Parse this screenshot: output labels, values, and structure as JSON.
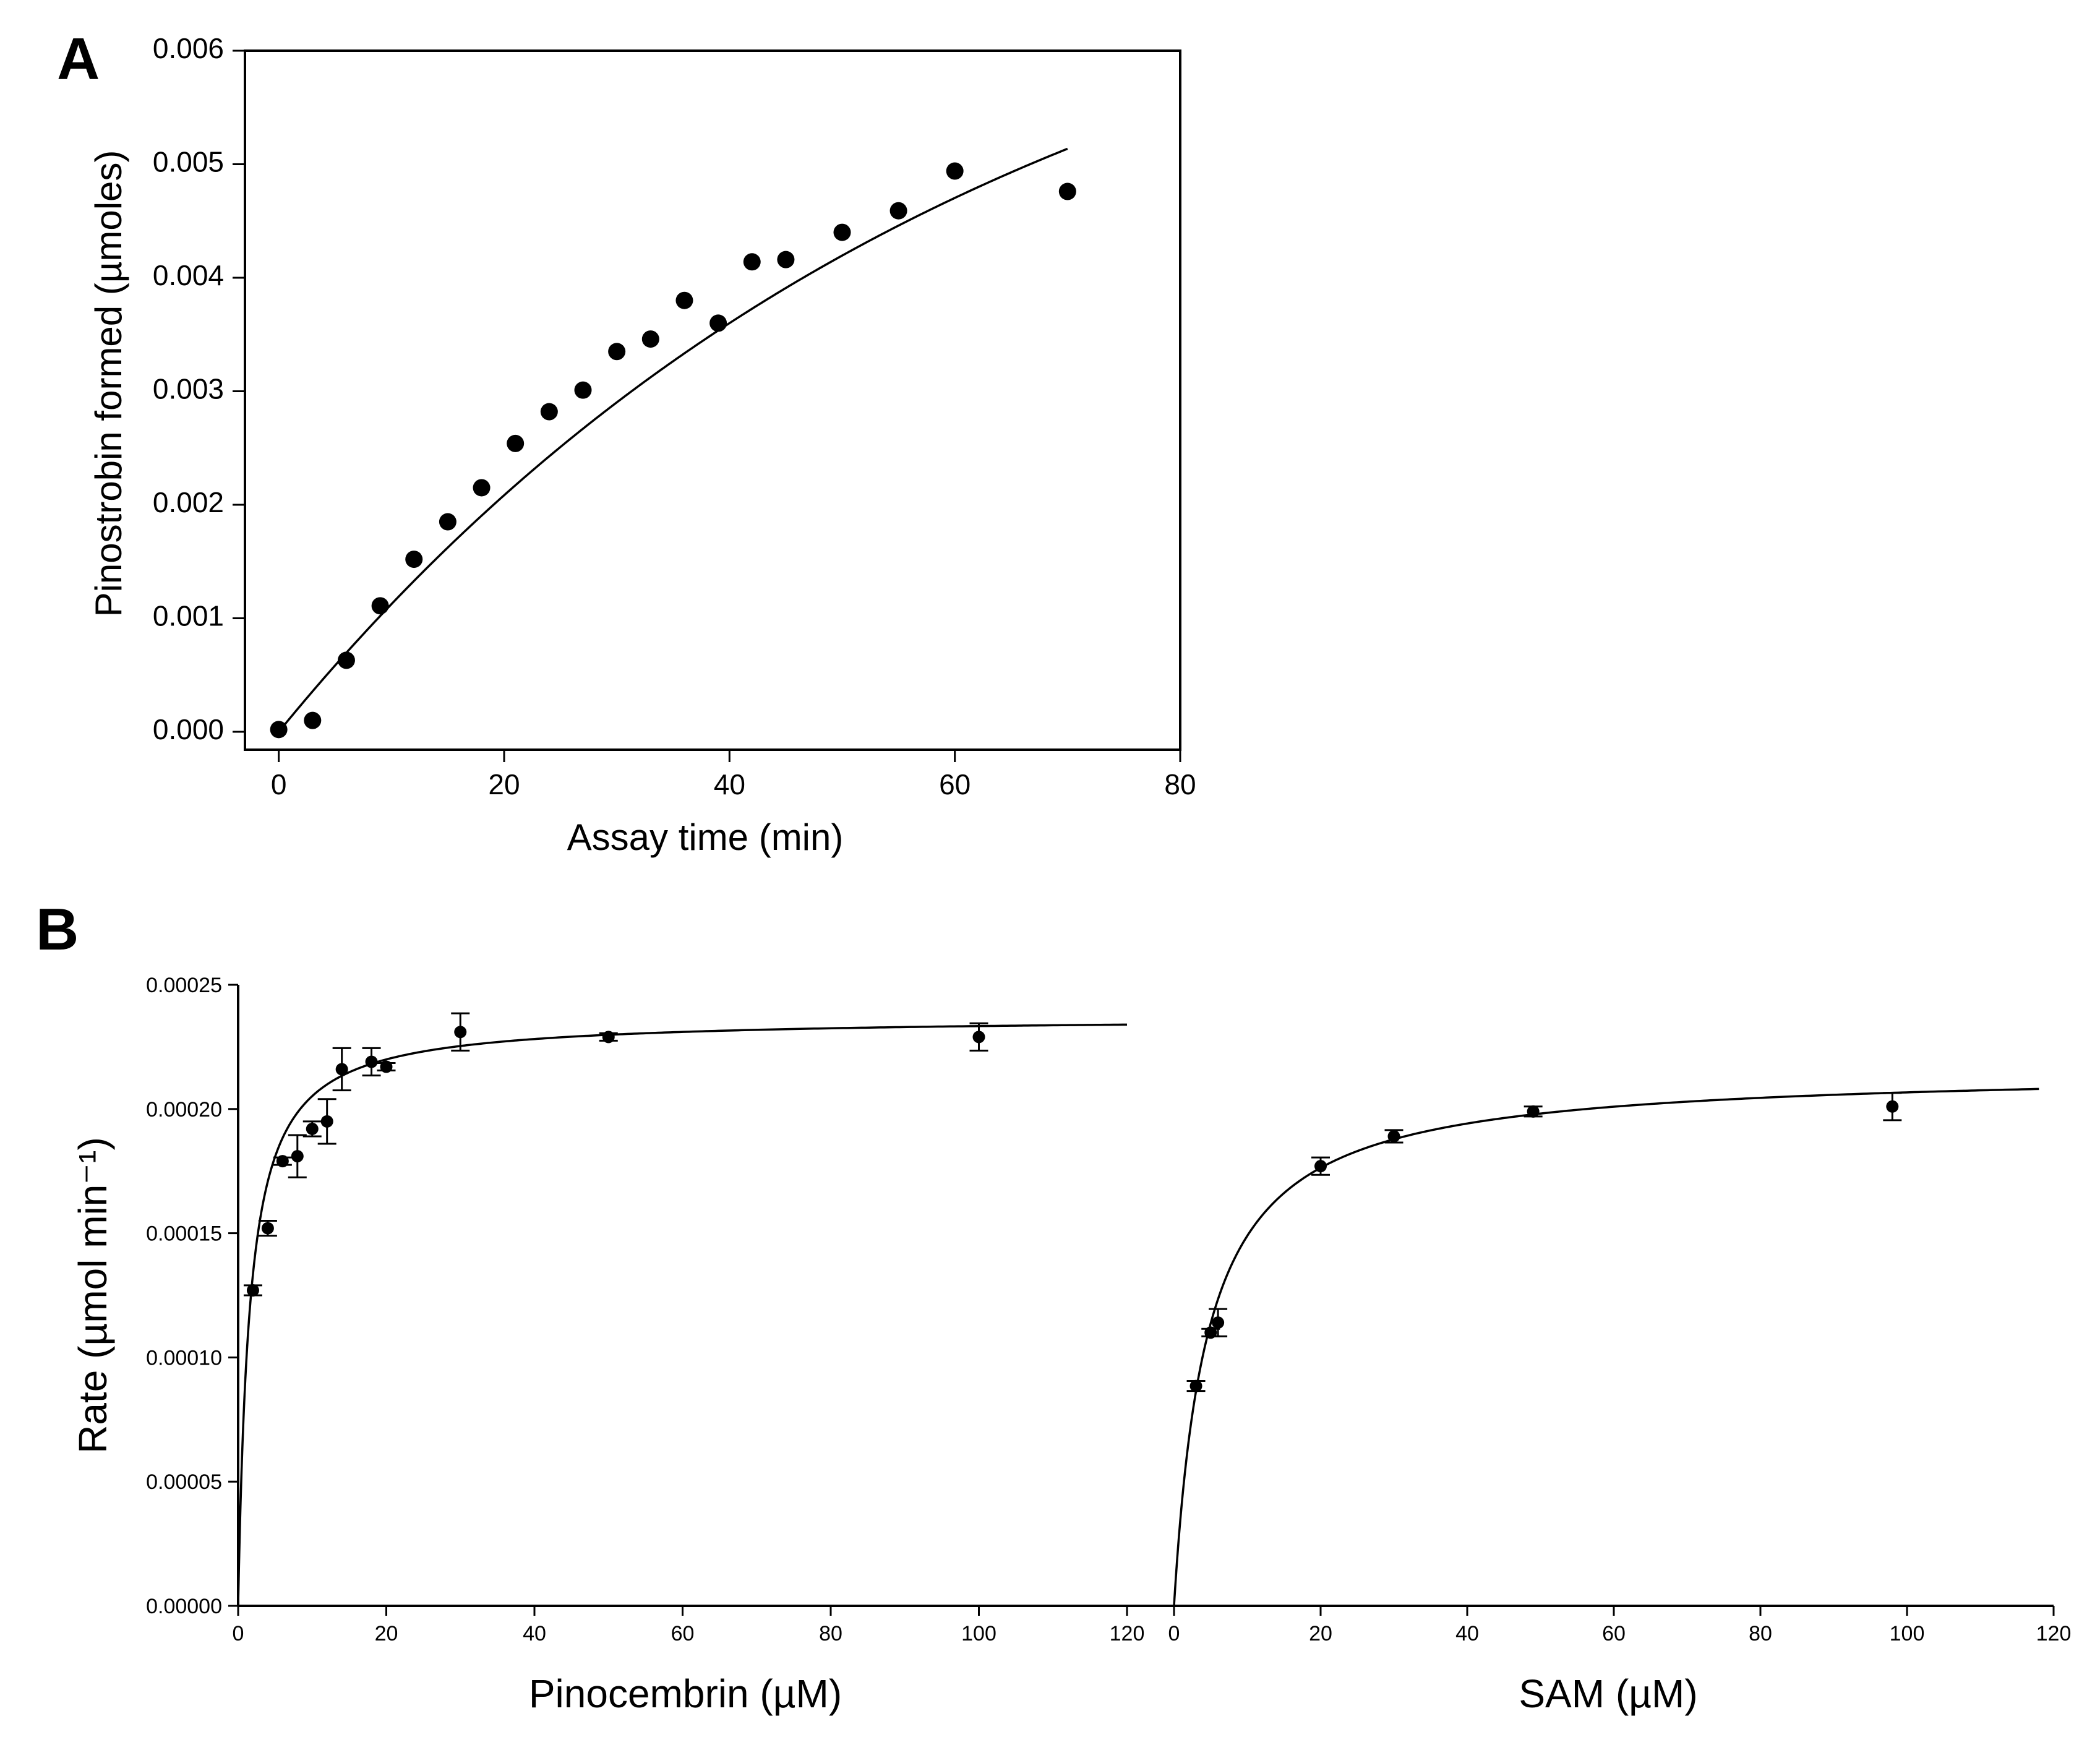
{
  "panels": {
    "A": {
      "letter": "A"
    },
    "B": {
      "letter": "B"
    }
  },
  "chart_data": [
    {
      "id": "A",
      "type": "scatter",
      "xlabel": "Assay time (min)",
      "ylabel": "Pinostrobin formed (µmoles)",
      "xlim": [
        -3,
        80
      ],
      "ylim": [
        -0.0002,
        0.006
      ],
      "xticks": [
        0,
        20,
        40,
        60,
        80
      ],
      "yticks": [
        0.0,
        0.001,
        0.002,
        0.003,
        0.004,
        0.005,
        0.006
      ],
      "xtick_labels": [
        "0",
        "20",
        "40",
        "60",
        "80"
      ],
      "ytick_labels": [
        "0.000",
        "0.001",
        "0.002",
        "0.003",
        "0.004",
        "0.005",
        "0.006"
      ],
      "frame": "box",
      "grid": false,
      "x": [
        0,
        3,
        6,
        9,
        12,
        15,
        18,
        21,
        24,
        27,
        30,
        33,
        36,
        39,
        42,
        45,
        50,
        55,
        60,
        70
      ],
      "y": [
        2e-05,
        0.0001,
        0.00063,
        0.00111,
        0.00152,
        0.00185,
        0.00215,
        0.00254,
        0.00282,
        0.00301,
        0.00335,
        0.00346,
        0.0038,
        0.0036,
        0.00414,
        0.00416,
        0.0044,
        0.00459,
        0.00494,
        0.00476
      ],
      "fit_curve": {
        "model": "exponential rise",
        "params": {
          "Ymax": 0.00765,
          "k": 0.0159
        },
        "x_range": [
          0,
          70
        ]
      }
    },
    {
      "id": "B-left",
      "type": "scatter",
      "xlabel": "Pinocembrin (µM)",
      "ylabel": "Rate (µmol min⁻¹)",
      "xlim": [
        0,
        120
      ],
      "ylim": [
        0,
        0.00025
      ],
      "xticks": [
        0,
        20,
        40,
        60,
        80,
        100,
        120
      ],
      "yticks": [
        0,
        5e-05,
        0.0001,
        0.00015,
        0.0002,
        0.00025
      ],
      "xtick_labels": [
        "0",
        "20",
        "40",
        "60",
        "80",
        "100",
        "120"
      ],
      "ytick_labels": [
        "0.00000",
        "0.00005",
        "0.00010",
        "0.00015",
        "0.00020",
        "0.00025"
      ],
      "frame": "left-bottom",
      "grid": false,
      "x": [
        2,
        4,
        6,
        8,
        10,
        12,
        14,
        18,
        20,
        30,
        50,
        100
      ],
      "y": [
        0.000127,
        0.000152,
        0.000179,
        0.000181,
        0.000192,
        0.000195,
        0.000216,
        0.000219,
        0.000217,
        0.000231,
        0.000229,
        0.000229
      ],
      "yerr": [
        2e-06,
        3e-06,
        1.5e-06,
        8.5e-06,
        3e-06,
        9e-06,
        8.5e-06,
        5.5e-06,
        1.5e-06,
        7.5e-06,
        1.5e-06,
        5.5e-06
      ],
      "fit_curve": {
        "model": "Michaelis-Menten",
        "params": {
          "Vmax": 0.000237,
          "Km": 1.55
        },
        "x_range": [
          0,
          120
        ]
      }
    },
    {
      "id": "B-right",
      "type": "scatter",
      "xlabel": "SAM (µM)",
      "ylabel": "",
      "xlim": [
        0,
        120
      ],
      "ylim": [
        0,
        0.00025
      ],
      "xticks": [
        0,
        20,
        40,
        60,
        80,
        100,
        120
      ],
      "xtick_labels": [
        "0",
        "20",
        "40",
        "60",
        "80",
        "100",
        "120"
      ],
      "frame": "bottom",
      "grid": false,
      "x": [
        3,
        5,
        6,
        20,
        30,
        49,
        98
      ],
      "y": [
        8.85e-05,
        0.00011,
        0.000114,
        0.000177,
        0.000189,
        0.000199,
        0.000201
      ],
      "yerr": [
        2e-06,
        1.5e-06,
        5.5e-06,
        3.5e-06,
        2.5e-06,
        2e-06,
        5.5e-06
      ],
      "fit_curve": {
        "model": "Michaelis-Menten",
        "params": {
          "Vmax": 0.000216,
          "Km": 4.5
        },
        "x_range": [
          0,
          118
        ]
      }
    }
  ]
}
